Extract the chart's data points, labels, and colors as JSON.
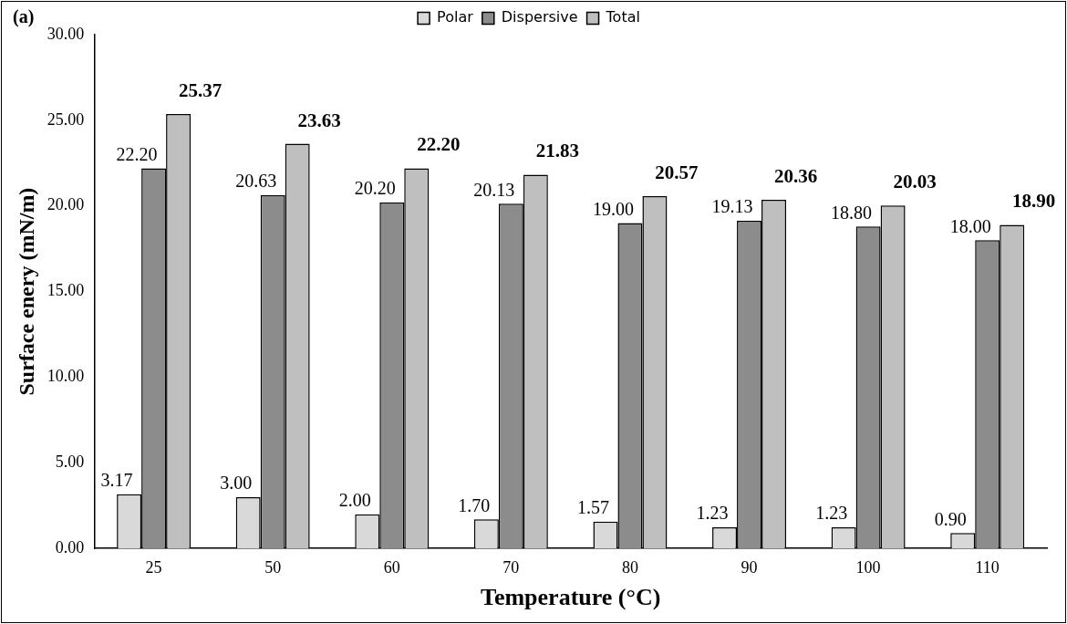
{
  "chart_data": {
    "type": "bar",
    "xlabel": "Temperature (°C)",
    "ylabel": "Surface enery (mN/m)",
    "annotations": [
      "(a)"
    ],
    "categories": [
      "25",
      "50",
      "60",
      "70",
      "80",
      "90",
      "100",
      "110"
    ],
    "series": [
      {
        "name": "Polar",
        "color": "#d9d9d9",
        "values": [
          3.17,
          3.0,
          2.0,
          1.7,
          1.57,
          1.23,
          1.23,
          0.9
        ],
        "value_labels": [
          "3.17",
          "3.00",
          "2.00",
          "1.70",
          "1.57",
          "1.23",
          "1.23",
          "0.90"
        ]
      },
      {
        "name": "Dispersive",
        "color": "#8c8c8c",
        "values": [
          22.2,
          20.63,
          20.2,
          20.13,
          19.0,
          19.13,
          18.8,
          18.0
        ],
        "value_labels": [
          "22.20",
          "20.63",
          "20.20",
          "20.13",
          "19.00",
          "19.13",
          "18.80",
          "18.00"
        ]
      },
      {
        "name": "Total",
        "color": "#bfbfbf",
        "values": [
          25.37,
          23.63,
          22.2,
          21.83,
          20.57,
          20.36,
          20.03,
          18.9
        ],
        "value_labels": [
          "25.37",
          "23.63",
          "22.20",
          "21.83",
          "20.57",
          "20.36",
          "20.03",
          "18.90"
        ]
      }
    ],
    "ylim": [
      0,
      30
    ],
    "yticks": [
      {
        "value": 0,
        "label": "0.00"
      },
      {
        "value": 5,
        "label": "5.00"
      },
      {
        "value": 10,
        "label": "10.00"
      },
      {
        "value": 15,
        "label": "15.00"
      },
      {
        "value": 20,
        "label": "20.00"
      },
      {
        "value": 25,
        "label": "25.00"
      },
      {
        "value": 30,
        "label": "30.00"
      }
    ],
    "grid": false,
    "legend": "top"
  }
}
